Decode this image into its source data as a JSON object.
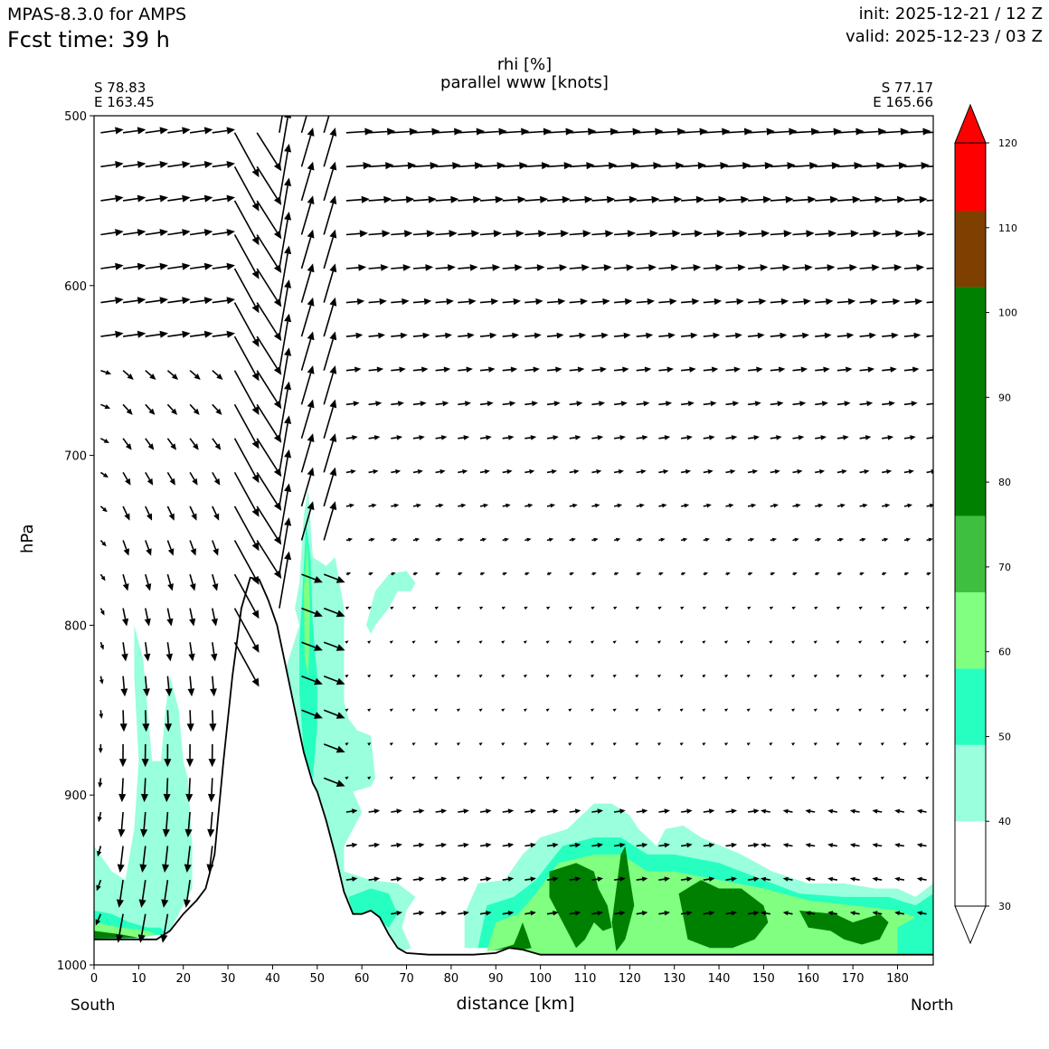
{
  "header": {
    "model": "MPAS-8.3.0 for AMPS",
    "fcst_time": "Fcst time:   39 h",
    "init": "init: 2025-12-21 / 12 Z",
    "valid": "valid: 2025-12-23 / 03 Z"
  },
  "section": {
    "start_lat": "S 78.83",
    "start_lon": "E 163.45",
    "end_lat": "S 77.17",
    "end_lon": "E 165.66",
    "south_label": "South",
    "north_label": "North"
  },
  "colors": {
    "c40": "#99ffdd",
    "c50": "#26ffc0",
    "c60": "#80ff80",
    "c70": "#3fbf3f",
    "c80": "#008000",
    "c100": "#7f3f00",
    "c110": "#ff0000"
  },
  "chart_data": {
    "type": "contourf",
    "title": "rhi [%]",
    "subtitle": "parallel www [knots]",
    "xlabel": "distance [km]",
    "ylabel": "hPa",
    "xlim": [
      0,
      188
    ],
    "ylim": [
      1000,
      500
    ],
    "y_inverted": true,
    "x_ticks": [
      0,
      10,
      20,
      30,
      40,
      50,
      60,
      70,
      80,
      90,
      100,
      110,
      120,
      130,
      140,
      150,
      160,
      170,
      180
    ],
    "y_ticks": [
      500,
      600,
      700,
      800,
      900,
      1000
    ],
    "colorbar": {
      "levels": [
        30,
        40,
        50,
        60,
        70,
        80,
        90,
        100,
        110,
        120
      ],
      "bands": [
        {
          "from": 30,
          "to": 40,
          "color": "#ffffff"
        },
        {
          "from": 40,
          "to": 49,
          "color": "#99ffdd"
        },
        {
          "from": 49,
          "to": 58,
          "color": "#26ffc0"
        },
        {
          "from": 58,
          "to": 67,
          "color": "#80ff80"
        },
        {
          "from": 67,
          "to": 76,
          "color": "#3fbf3f"
        },
        {
          "from": 76,
          "to": 103,
          "color": "#008000"
        },
        {
          "from": 103,
          "to": 112,
          "color": "#7f3f00"
        },
        {
          "from": 112,
          "to": 120,
          "color": "#ff0000"
        }
      ]
    },
    "terrain": [
      [
        0,
        985
      ],
      [
        8,
        985
      ],
      [
        14,
        985
      ],
      [
        17,
        980
      ],
      [
        20,
        970
      ],
      [
        23,
        962
      ],
      [
        25,
        955
      ],
      [
        27,
        935
      ],
      [
        29,
        880
      ],
      [
        31,
        830
      ],
      [
        33,
        790
      ],
      [
        35,
        772
      ],
      [
        37,
        773
      ],
      [
        39,
        785
      ],
      [
        41,
        800
      ],
      [
        43,
        825
      ],
      [
        45,
        850
      ],
      [
        47,
        875
      ],
      [
        49,
        893
      ],
      [
        50,
        898
      ],
      [
        52,
        915
      ],
      [
        54,
        935
      ],
      [
        56,
        957
      ],
      [
        58,
        970
      ],
      [
        60,
        970
      ],
      [
        62,
        968
      ],
      [
        64,
        972
      ],
      [
        66,
        982
      ],
      [
        68,
        990
      ],
      [
        70,
        993
      ],
      [
        75,
        994
      ],
      [
        80,
        994
      ],
      [
        85,
        994
      ],
      [
        90,
        993
      ],
      [
        93,
        990
      ],
      [
        96,
        991
      ],
      [
        100,
        994
      ],
      [
        188,
        994
      ]
    ],
    "rh_regions": [
      {
        "band": "c40",
        "points": [
          [
            0,
            930
          ],
          [
            4,
            945
          ],
          [
            7,
            950
          ],
          [
            9,
            920
          ],
          [
            10,
            880
          ],
          [
            9,
            830
          ],
          [
            9,
            800
          ],
          [
            11,
            820
          ],
          [
            13,
            880
          ],
          [
            15,
            880
          ],
          [
            16,
            850
          ],
          [
            17,
            830
          ],
          [
            19,
            850
          ],
          [
            20,
            880
          ],
          [
            21,
            890
          ],
          [
            22,
            930
          ],
          [
            22,
            955
          ],
          [
            17,
            980
          ],
          [
            10,
            985
          ],
          [
            0,
            985
          ]
        ]
      },
      {
        "band": "c50",
        "points": [
          [
            0,
            968
          ],
          [
            4,
            970
          ],
          [
            8,
            975
          ],
          [
            12,
            978
          ],
          [
            15,
            978
          ],
          [
            16,
            982
          ],
          [
            10,
            983
          ],
          [
            0,
            983
          ]
        ]
      },
      {
        "band": "c60",
        "points": [
          [
            0,
            975
          ],
          [
            6,
            978
          ],
          [
            12,
            980
          ],
          [
            14,
            982
          ],
          [
            8,
            984
          ],
          [
            0,
            984
          ]
        ]
      },
      {
        "band": "c80",
        "points": [
          [
            0,
            980
          ],
          [
            6,
            982
          ],
          [
            10,
            984
          ],
          [
            0,
            984.5
          ]
        ]
      },
      {
        "band": "c40",
        "points": [
          [
            46,
            775
          ],
          [
            47,
            735
          ],
          [
            48,
            720
          ],
          [
            49,
            760
          ],
          [
            52,
            765
          ],
          [
            54,
            760
          ],
          [
            55,
            775
          ],
          [
            56,
            790
          ],
          [
            56,
            820
          ],
          [
            56,
            845
          ],
          [
            57,
            855
          ],
          [
            59,
            862
          ],
          [
            62,
            865
          ],
          [
            63,
            890
          ],
          [
            62,
            895
          ],
          [
            58,
            898
          ],
          [
            60,
            910
          ],
          [
            56,
            930
          ],
          [
            56,
            945
          ],
          [
            62,
            950
          ],
          [
            68,
            952
          ],
          [
            72,
            960
          ],
          [
            70,
            968
          ],
          [
            69,
            978
          ],
          [
            71,
            990
          ],
          [
            68,
            993
          ],
          [
            64,
            975
          ],
          [
            62,
            968
          ],
          [
            58,
            970
          ],
          [
            56,
            958
          ],
          [
            53,
            930
          ],
          [
            51,
            910
          ],
          [
            50,
            898
          ],
          [
            48,
            888
          ],
          [
            46,
            875
          ],
          [
            44,
            850
          ],
          [
            43,
            825
          ],
          [
            46,
            800
          ],
          [
            45,
            790
          ]
        ]
      },
      {
        "band": "c50",
        "points": [
          [
            46.5,
            790
          ],
          [
            47.5,
            740
          ],
          [
            48.5,
            760
          ],
          [
            49,
            800
          ],
          [
            50,
            830
          ],
          [
            50,
            860
          ],
          [
            49,
            890
          ],
          [
            47,
            875
          ],
          [
            46,
            840
          ],
          [
            46,
            810
          ]
        ]
      },
      {
        "band": "c60",
        "points": [
          [
            47,
            780
          ],
          [
            47.8,
            750
          ],
          [
            48.4,
            790
          ],
          [
            48,
            830
          ],
          [
            47.2,
            820
          ]
        ]
      },
      {
        "band": "c50",
        "points": [
          [
            57,
            960
          ],
          [
            62,
            955
          ],
          [
            66,
            958
          ],
          [
            68,
            970
          ],
          [
            66,
            978
          ],
          [
            62,
            970
          ],
          [
            58,
            970
          ]
        ]
      },
      {
        "band": "c40",
        "points": [
          [
            61,
            800
          ],
          [
            63,
            780
          ],
          [
            66,
            770
          ],
          [
            70,
            768
          ],
          [
            72,
            775
          ],
          [
            71,
            780
          ],
          [
            68,
            780
          ],
          [
            66,
            790
          ],
          [
            63,
            800
          ],
          [
            62,
            805
          ]
        ]
      },
      {
        "band": "c40",
        "points": [
          [
            83,
            990
          ],
          [
            83,
            970
          ],
          [
            86,
            952
          ],
          [
            92,
            950
          ],
          [
            96,
            935
          ],
          [
            100,
            925
          ],
          [
            106,
            920
          ],
          [
            112,
            905
          ],
          [
            116,
            905
          ],
          [
            120,
            912
          ],
          [
            122,
            920
          ],
          [
            126,
            930
          ],
          [
            128,
            920
          ],
          [
            132,
            918
          ],
          [
            136,
            925
          ],
          [
            145,
            935
          ],
          [
            152,
            945
          ],
          [
            160,
            952
          ],
          [
            168,
            952
          ],
          [
            175,
            955
          ],
          [
            180,
            955
          ],
          [
            184,
            960
          ],
          [
            188,
            952
          ],
          [
            188,
            994
          ],
          [
            100,
            994
          ],
          [
            96,
            991
          ],
          [
            93,
            990
          ],
          [
            88,
            990
          ]
        ]
      },
      {
        "band": "c50",
        "points": [
          [
            86,
            990
          ],
          [
            88,
            965
          ],
          [
            94,
            960
          ],
          [
            99,
            950
          ],
          [
            105,
            930
          ],
          [
            112,
            925
          ],
          [
            118,
            925
          ],
          [
            124,
            935
          ],
          [
            130,
            935
          ],
          [
            140,
            940
          ],
          [
            150,
            950
          ],
          [
            158,
            958
          ],
          [
            168,
            960
          ],
          [
            178,
            960
          ],
          [
            184,
            965
          ],
          [
            188,
            958
          ],
          [
            188,
            994
          ],
          [
            100,
            994
          ],
          [
            96,
            991
          ],
          [
            93,
            990
          ]
        ]
      },
      {
        "band": "c60",
        "points": [
          [
            88,
            992
          ],
          [
            90,
            975
          ],
          [
            95,
            970
          ],
          [
            99,
            958
          ],
          [
            104,
            940
          ],
          [
            112,
            935
          ],
          [
            118,
            935
          ],
          [
            124,
            945
          ],
          [
            130,
            945
          ],
          [
            140,
            950
          ],
          [
            150,
            955
          ],
          [
            160,
            962
          ],
          [
            170,
            965
          ],
          [
            180,
            968
          ],
          [
            184,
            972
          ],
          [
            180,
            978
          ],
          [
            180,
            994
          ],
          [
            100,
            994
          ],
          [
            96,
            991
          ],
          [
            93,
            990
          ]
        ]
      },
      {
        "band": "c80",
        "points": [
          [
            89,
            992
          ],
          [
            94,
            988
          ],
          [
            95,
            982
          ],
          [
            96,
            975
          ],
          [
            97,
            982
          ],
          [
            98,
            990
          ],
          [
            96,
            991
          ],
          [
            93,
            990
          ]
        ]
      },
      {
        "band": "c80",
        "points": [
          [
            102,
            945
          ],
          [
            108,
            940
          ],
          [
            112,
            945
          ],
          [
            113,
            955
          ],
          [
            115,
            965
          ],
          [
            116,
            978
          ],
          [
            114,
            980
          ],
          [
            112,
            975
          ],
          [
            110,
            985
          ],
          [
            108,
            990
          ],
          [
            106,
            980
          ],
          [
            104,
            970
          ],
          [
            102,
            960
          ]
        ]
      },
      {
        "band": "c80",
        "points": [
          [
            116,
            975
          ],
          [
            117,
            955
          ],
          [
            118,
            935
          ],
          [
            119,
            930
          ],
          [
            120,
            948
          ],
          [
            121,
            965
          ],
          [
            119,
            985
          ],
          [
            117,
            992
          ]
        ]
      },
      {
        "band": "c80",
        "points": [
          [
            131,
            958
          ],
          [
            136,
            950
          ],
          [
            140,
            955
          ],
          [
            145,
            955
          ],
          [
            150,
            965
          ],
          [
            151,
            975
          ],
          [
            148,
            985
          ],
          [
            143,
            990
          ],
          [
            138,
            990
          ],
          [
            133,
            985
          ]
        ]
      },
      {
        "band": "c80",
        "points": [
          [
            158,
            968
          ],
          [
            166,
            970
          ],
          [
            170,
            975
          ],
          [
            176,
            970
          ],
          [
            178,
            975
          ],
          [
            176,
            985
          ],
          [
            172,
            988
          ],
          [
            168,
            985
          ],
          [
            165,
            980
          ],
          [
            160,
            978
          ]
        ]
      }
    ],
    "wind_grid": {
      "x_spacing_km": 5,
      "levels_hPa": [
        510,
        530,
        550,
        570,
        590,
        610,
        630,
        650,
        670,
        690,
        710,
        730,
        750,
        770,
        790,
        810,
        830,
        850,
        870,
        890,
        910,
        930,
        950,
        970,
        990
      ],
      "field": "along-section wind (u) and vertical motion (w)",
      "units": "knots"
    }
  }
}
